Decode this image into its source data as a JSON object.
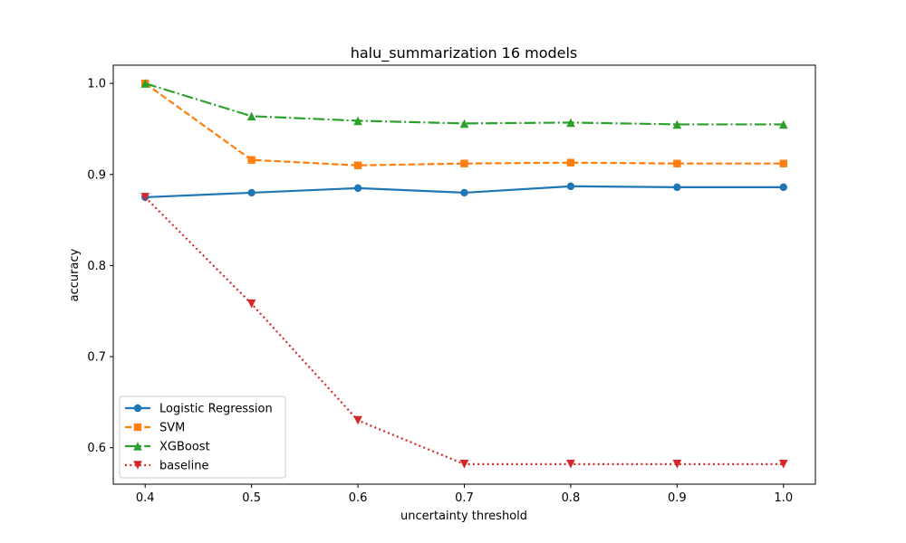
{
  "chart_data": {
    "type": "line",
    "title": "halu_summarization 16 models",
    "xlabel": "uncertainty threshold",
    "ylabel": "accuracy",
    "x": [
      0.4,
      0.5,
      0.6,
      0.7,
      0.8,
      0.9,
      1.0
    ],
    "x_tick_labels": [
      "0.4",
      "0.5",
      "0.6",
      "0.7",
      "0.8",
      "0.9",
      "1.0"
    ],
    "y_ticks": [
      0.6,
      0.7,
      0.8,
      0.9,
      1.0
    ],
    "y_tick_labels": [
      "0.6",
      "0.7",
      "0.8",
      "0.9",
      "1.0"
    ],
    "xlim": [
      0.37,
      1.03
    ],
    "ylim": [
      0.56,
      1.02
    ],
    "grid": false,
    "legend_position": "lower-left",
    "series": [
      {
        "name": "Logistic Regression",
        "values": [
          0.875,
          0.88,
          0.885,
          0.88,
          0.887,
          0.886,
          0.886
        ],
        "color": "#1f77b4",
        "marker": "circle",
        "linestyle": "solid"
      },
      {
        "name": "SVM",
        "values": [
          1.0,
          0.916,
          0.91,
          0.912,
          0.913,
          0.912,
          0.912
        ],
        "color": "#ff7f0e",
        "marker": "square",
        "linestyle": "dashed"
      },
      {
        "name": "XGBoost",
        "values": [
          1.0,
          0.964,
          0.959,
          0.956,
          0.957,
          0.955,
          0.955
        ],
        "color": "#2ca02c",
        "marker": "triangle-up",
        "linestyle": "dashdot"
      },
      {
        "name": "baseline",
        "values": [
          0.875,
          0.758,
          0.63,
          0.582,
          0.582,
          0.582,
          0.582
        ],
        "color": "#d62728",
        "marker": "triangle-down",
        "linestyle": "dotted"
      }
    ]
  }
}
